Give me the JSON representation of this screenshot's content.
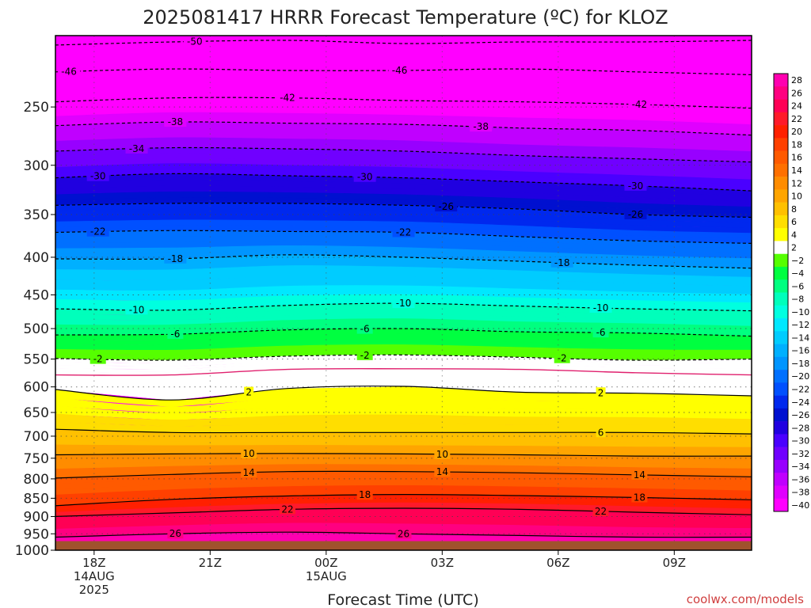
{
  "chart_data": {
    "type": "contour",
    "title": "2025081417 HRRR Forecast Temperature (ºC) for KLOZ",
    "xlabel": "Forecast Time (UTC)",
    "credit": "coolwx.com/models",
    "x_ticks": [
      {
        "label": "18Z",
        "sub1": "14AUG",
        "sub2": "2025",
        "hour": 1
      },
      {
        "label": "21Z",
        "sub1": "",
        "sub2": "",
        "hour": 4
      },
      {
        "label": "00Z",
        "sub1": "15AUG",
        "sub2": "",
        "hour": 7
      },
      {
        "label": "03Z",
        "sub1": "",
        "sub2": "",
        "hour": 10
      },
      {
        "label": "06Z",
        "sub1": "",
        "sub2": "",
        "hour": 13
      },
      {
        "label": "09Z",
        "sub1": "",
        "sub2": "",
        "hour": 16
      }
    ],
    "x_range_hours": [
      0,
      18
    ],
    "y_ticks": [
      "250",
      "300",
      "350",
      "400",
      "450",
      "500",
      "550",
      "600",
      "650",
      "700",
      "750",
      "800",
      "850",
      "900",
      "950",
      "1000"
    ],
    "y_range_hPa": [
      200,
      1000
    ],
    "y_scale": "log",
    "surface_pressure_hPa": 972,
    "colorbar_ticks": [
      "28",
      "26",
      "24",
      "22",
      "20",
      "18",
      "16",
      "14",
      "12",
      "10",
      "8",
      "6",
      "4",
      "2",
      "−2",
      "−4",
      "−6",
      "−8",
      "−10",
      "−12",
      "−14",
      "−16",
      "−18",
      "−20",
      "−22",
      "−24",
      "−26",
      "−28",
      "−30",
      "−32",
      "−34",
      "−36",
      "−38",
      "−40"
    ],
    "colorbar_colors": [
      "#ff00b0",
      "#ff0080",
      "#ff0055",
      "#ff1a2a",
      "#ff2000",
      "#ff4000",
      "#ff5a00",
      "#ff7000",
      "#ff8c00",
      "#ffa500",
      "#ffc000",
      "#ffde00",
      "#ffff00",
      "#ffffff",
      "#55ff00",
      "#00ff40",
      "#00ff80",
      "#00ffbb",
      "#00ffe0",
      "#00e8ff",
      "#00ccff",
      "#00b0ff",
      "#0095ff",
      "#0070ff",
      "#0050ff",
      "#0028ee",
      "#0010d0",
      "#2000e0",
      "#4a00ff",
      "#7000ff",
      "#9800ff",
      "#c000ff",
      "#e000ff",
      "#ff00ff"
    ],
    "contour_lines": [
      {
        "temp": -50,
        "label": "-50",
        "style": "dashed",
        "p": [
          206,
          204,
          203,
          205,
          204,
          204,
          203
        ],
        "labels": [
          {
            "hour": 3.6,
            "text": "-50"
          }
        ]
      },
      {
        "temp": -46,
        "label": "-46",
        "style": "dashed",
        "p": [
          224,
          222,
          223,
          223,
          222,
          224,
          226
        ],
        "labels": [
          {
            "hour": 0.35,
            "text": "-46"
          },
          {
            "hour": 8.9,
            "text": "-46"
          }
        ]
      },
      {
        "temp": -42,
        "label": "-42",
        "style": "dashed",
        "p": [
          246,
          243,
          243,
          245,
          246,
          248,
          251
        ],
        "labels": [
          {
            "hour": 6.0,
            "text": "-42"
          },
          {
            "hour": 15.1,
            "text": "-42"
          }
        ]
      },
      {
        "temp": -38,
        "label": "-38",
        "style": "dashed",
        "p": [
          265,
          262,
          263,
          264,
          267,
          269,
          273
        ],
        "labels": [
          {
            "hour": 3.1,
            "text": "-38"
          },
          {
            "hour": 11.0,
            "text": "-38"
          }
        ]
      },
      {
        "temp": -34,
        "label": "-34",
        "style": "dashed",
        "p": [
          287,
          284,
          285,
          287,
          291,
          294,
          297
        ],
        "labels": [
          {
            "hour": 2.1,
            "text": "-34"
          }
        ]
      },
      {
        "temp": -30,
        "label": "-30",
        "style": "dashed",
        "p": [
          312,
          308,
          310,
          312,
          316,
          320,
          325
        ],
        "labels": [
          {
            "hour": 1.1,
            "text": "-30"
          },
          {
            "hour": 8.0,
            "text": "-30"
          },
          {
            "hour": 15.0,
            "text": "-30"
          }
        ]
      },
      {
        "temp": -26,
        "label": "-26",
        "style": "dashed",
        "p": [
          340,
          338,
          338,
          340,
          344,
          350,
          353
        ],
        "labels": [
          {
            "hour": 10.1,
            "text": "-26"
          },
          {
            "hour": 15.0,
            "text": "-26"
          }
        ]
      },
      {
        "temp": -22,
        "label": "-22",
        "style": "dashed",
        "p": [
          370,
          368,
          369,
          370,
          375,
          380,
          383
        ],
        "labels": [
          {
            "hour": 1.1,
            "text": "-22"
          },
          {
            "hour": 9.0,
            "text": "-22"
          }
        ]
      },
      {
        "temp": -18,
        "label": "-18",
        "style": "dashed",
        "p": [
          402,
          402,
          397,
          400,
          405,
          410,
          414
        ],
        "labels": [
          {
            "hour": 3.1,
            "text": "-18"
          },
          {
            "hour": 13.1,
            "text": "-18"
          }
        ]
      },
      {
        "temp": -10,
        "label": "-10",
        "style": "dashed",
        "p": [
          470,
          472,
          465,
          462,
          466,
          470,
          473
        ],
        "labels": [
          {
            "hour": 2.1,
            "text": "-10"
          },
          {
            "hour": 9.0,
            "text": "-10"
          },
          {
            "hour": 14.1,
            "text": "-10"
          }
        ]
      },
      {
        "temp": -6,
        "label": "-6",
        "style": "dashed",
        "p": [
          510,
          509,
          502,
          500,
          505,
          507,
          512
        ],
        "labels": [
          {
            "hour": 3.1,
            "text": "-6"
          },
          {
            "hour": 8.0,
            "text": "-6"
          },
          {
            "hour": 14.1,
            "text": "-6"
          }
        ]
      },
      {
        "temp": -2,
        "label": "-2",
        "style": "dashed",
        "p": [
          549,
          552,
          545,
          543,
          547,
          552,
          550
        ],
        "labels": [
          {
            "hour": 1.1,
            "text": "-2"
          },
          {
            "hour": 8.0,
            "text": "-2"
          },
          {
            "hour": 13.1,
            "text": "-2"
          }
        ]
      },
      {
        "temp": 0,
        "label": "",
        "style": "magenta",
        "p": [
          578,
          578,
          568,
          567,
          568,
          574,
          578
        ],
        "labels": []
      },
      {
        "temp": 2,
        "label": "2",
        "style": "solid",
        "p": [
          605,
          625,
          603,
          599,
          610,
          612,
          617
        ],
        "labels": [
          {
            "hour": 5.0,
            "text": "2"
          },
          {
            "hour": 14.1,
            "text": "2"
          }
        ]
      },
      {
        "temp": 6,
        "label": "6",
        "style": "solid",
        "p": [
          685,
          692,
          692,
          692,
          692,
          692,
          695
        ],
        "labels": [
          {
            "hour": 14.1,
            "text": "6"
          }
        ]
      },
      {
        "temp": 10,
        "label": "10",
        "style": "solid",
        "p": [
          742,
          740,
          739,
          740,
          742,
          745,
          745
        ],
        "labels": [
          {
            "hour": 5.0,
            "text": "10"
          },
          {
            "hour": 10.0,
            "text": "10"
          }
        ]
      },
      {
        "temp": 14,
        "label": "14",
        "style": "solid",
        "p": [
          798,
          789,
          782,
          782,
          785,
          790,
          795
        ],
        "labels": [
          {
            "hour": 5.0,
            "text": "14"
          },
          {
            "hour": 10.0,
            "text": "14"
          },
          {
            "hour": 15.1,
            "text": "14"
          }
        ]
      },
      {
        "temp": 18,
        "label": "18",
        "style": "solid",
        "p": [
          870,
          853,
          844,
          840,
          843,
          848,
          854
        ],
        "labels": [
          {
            "hour": 8.0,
            "text": "18"
          },
          {
            "hour": 15.1,
            "text": "18"
          }
        ]
      },
      {
        "temp": 22,
        "label": "22",
        "style": "solid",
        "p": [
          900,
          890,
          880,
          877,
          880,
          888,
          895
        ],
        "labels": [
          {
            "hour": 6.0,
            "text": "22"
          },
          {
            "hour": 14.1,
            "text": "22"
          }
        ]
      },
      {
        "temp": 26,
        "label": "26",
        "style": "solid",
        "p": [
          960,
          950,
          945,
          950,
          955,
          960,
          960
        ],
        "labels": [
          {
            "hour": 3.1,
            "text": "26"
          },
          {
            "hour": 9.0,
            "text": "26"
          }
        ]
      }
    ]
  }
}
